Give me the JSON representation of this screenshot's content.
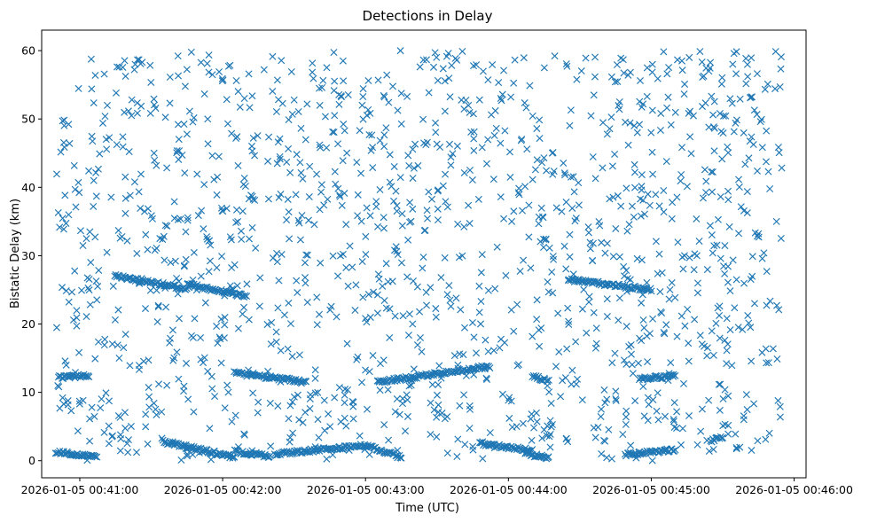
{
  "chart_data": {
    "type": "scatter",
    "title": "Detections in Delay",
    "xlabel": "Time (UTC)",
    "ylabel": "Bistatic Delay (km)",
    "marker": "x",
    "grid": false,
    "legend": "none",
    "color": "#1f77b4",
    "x_ticks": [
      {
        "t": "00:41:00",
        "label": "2026-01-05 00:41:00"
      },
      {
        "t": "00:42:00",
        "label": "2026-01-05 00:42:00"
      },
      {
        "t": "00:43:00",
        "label": "2026-01-05 00:43:00"
      },
      {
        "t": "00:44:00",
        "label": "2026-01-05 00:44:00"
      },
      {
        "t": "00:45:00",
        "label": "2026-01-05 00:45:00"
      },
      {
        "t": "00:46:00",
        "label": "2026-01-05 00:46:00"
      }
    ],
    "xlim": [
      "00:40:44",
      "00:46:05"
    ],
    "ylim": [
      -2.5,
      63
    ],
    "y_ticks": [
      0,
      10,
      20,
      30,
      40,
      50,
      60
    ],
    "tracks": [
      {
        "start": [
          "00:40:50",
          1.3
        ],
        "end": [
          "00:41:07",
          0.6
        ]
      },
      {
        "start": [
          "00:40:51",
          12.2
        ],
        "end": [
          "00:41:04",
          12.4
        ]
      },
      {
        "start": [
          "00:41:15",
          27.0
        ],
        "end": [
          "00:41:45",
          25.2
        ]
      },
      {
        "start": [
          "00:41:45",
          25.8
        ],
        "end": [
          "00:42:10",
          24.0
        ]
      },
      {
        "start": [
          "00:41:35",
          2.8
        ],
        "end": [
          "00:42:05",
          0.5
        ]
      },
      {
        "start": [
          "00:42:05",
          1.4
        ],
        "end": [
          "00:42:20",
          0.6
        ]
      },
      {
        "start": [
          "00:42:05",
          12.8
        ],
        "end": [
          "00:42:20",
          12.2
        ]
      },
      {
        "start": [
          "00:42:20",
          12.2
        ],
        "end": [
          "00:42:35",
          11.5
        ]
      },
      {
        "start": [
          "00:42:22",
          1.0
        ],
        "end": [
          "00:43:00",
          2.2
        ]
      },
      {
        "start": [
          "00:43:00",
          2.2
        ],
        "end": [
          "00:43:15",
          0.5
        ]
      },
      {
        "start": [
          "00:43:05",
          11.5
        ],
        "end": [
          "00:43:52",
          13.8
        ]
      },
      {
        "start": [
          "00:43:48",
          2.5
        ],
        "end": [
          "00:44:10",
          1.5
        ]
      },
      {
        "start": [
          "00:44:07",
          1.0
        ],
        "end": [
          "00:44:17",
          0.5
        ]
      },
      {
        "start": [
          "00:44:10",
          12.4
        ],
        "end": [
          "00:44:17",
          11.6
        ]
      },
      {
        "start": [
          "00:44:25",
          26.5
        ],
        "end": [
          "00:45:00",
          25.0
        ]
      },
      {
        "start": [
          "00:44:49",
          0.9
        ],
        "end": [
          "00:45:10",
          1.6
        ]
      },
      {
        "start": [
          "00:44:55",
          12.0
        ],
        "end": [
          "00:45:10",
          12.4
        ]
      },
      {
        "start": [
          "00:45:25",
          2.8
        ],
        "end": [
          "00:45:30",
          3.5
        ]
      }
    ],
    "scatter": {
      "count": 1450,
      "t_range": [
        "00:40:50",
        "00:45:55"
      ],
      "y_range": [
        0,
        60
      ]
    }
  }
}
